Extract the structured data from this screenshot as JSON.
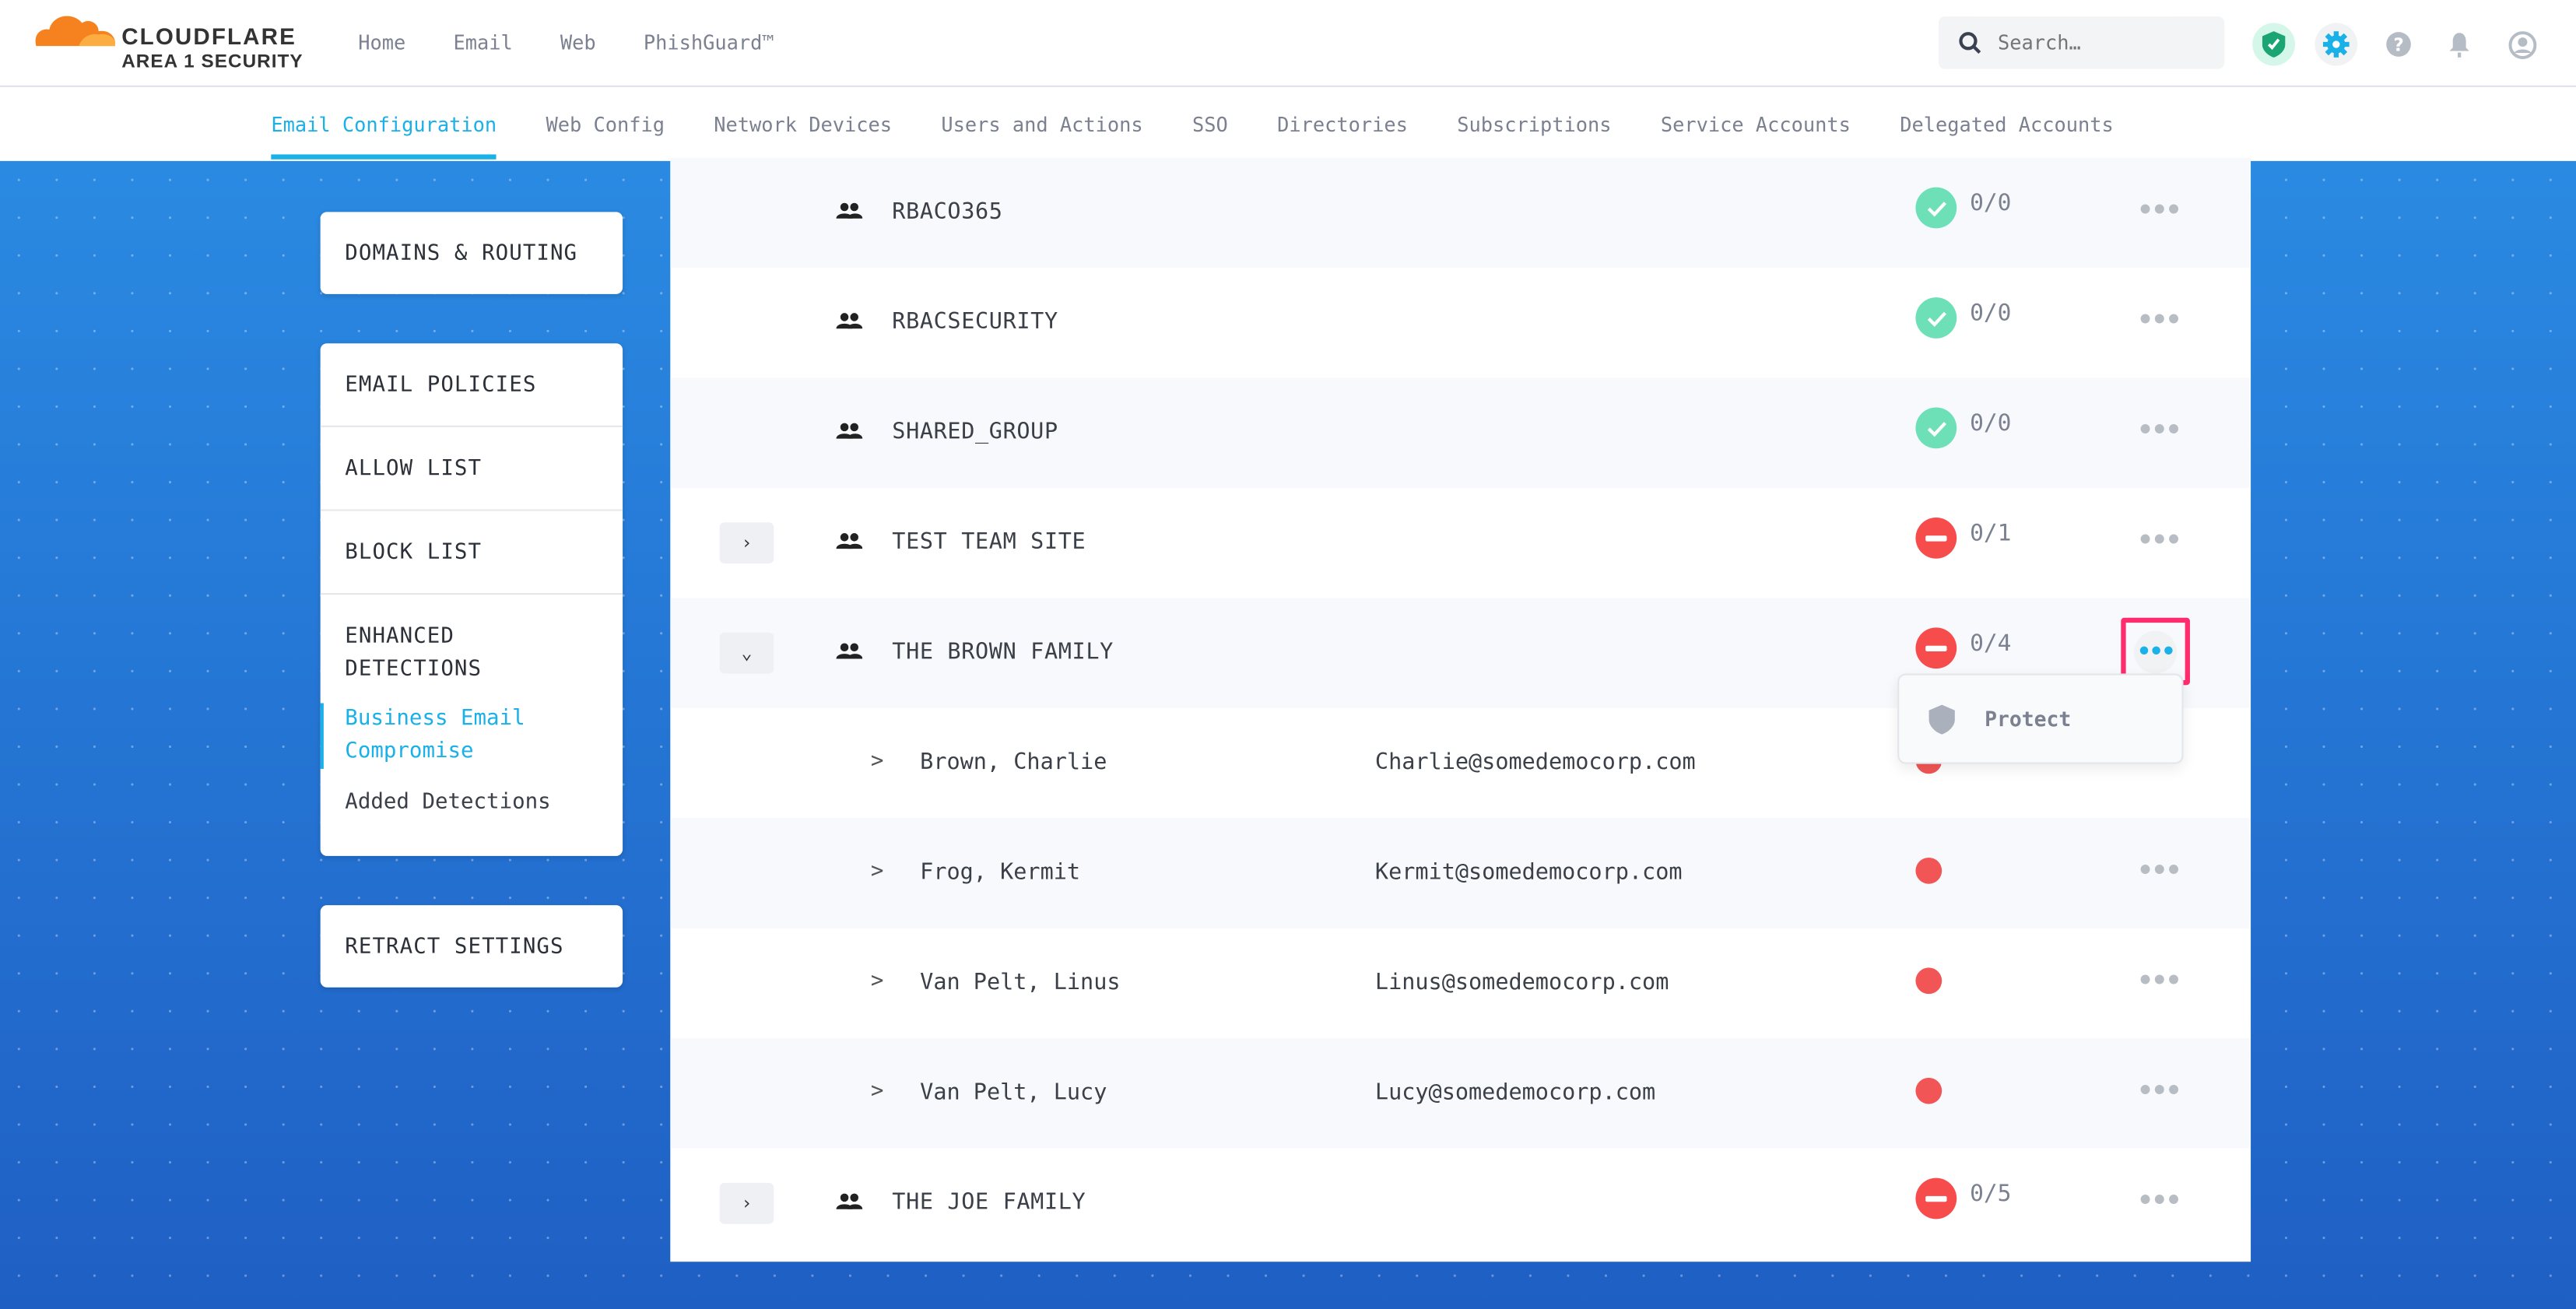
{
  "header": {
    "brand": "CLOUDFLARE",
    "brand_sub": "AREA 1 SECURITY",
    "nav": [
      "Home",
      "Email",
      "Web",
      "PhishGuard™"
    ],
    "search_placeholder": "Search…"
  },
  "subnav": {
    "tabs": [
      "Email Configuration",
      "Web Config",
      "Network Devices",
      "Users and Actions",
      "SSO",
      "Directories",
      "Subscriptions",
      "Service Accounts",
      "Delegated Accounts"
    ],
    "active": 0
  },
  "sidebar": {
    "domains": "DOMAINS & ROUTING",
    "email_policies": "EMAIL POLICIES",
    "allow_list": "ALLOW LIST",
    "block_list": "BLOCK LIST",
    "enhanced": "ENHANCED DETECTIONS",
    "bec": "Business Email Compromise",
    "added": "Added Detections",
    "retract": "RETRACT SETTINGS"
  },
  "rows": [
    {
      "type": "group",
      "name": "RBACO365",
      "status": "ok",
      "count": "0/0",
      "expand": null
    },
    {
      "type": "group",
      "name": "RBACSECURITY",
      "status": "ok",
      "count": "0/0",
      "expand": null
    },
    {
      "type": "group",
      "name": "SHARED_GROUP",
      "status": "ok",
      "count": "0/0",
      "expand": null
    },
    {
      "type": "group",
      "name": "TEST TEAM SITE",
      "status": "bad",
      "count": "0/1",
      "expand": "collapsed"
    },
    {
      "type": "group",
      "name": "THE BROWN FAMILY",
      "status": "bad",
      "count": "0/4",
      "expand": "expanded"
    },
    {
      "type": "member",
      "name": "Brown, Charlie",
      "email": "Charlie@somedemocorp.com"
    },
    {
      "type": "member",
      "name": "Frog, Kermit",
      "email": "Kermit@somedemocorp.com"
    },
    {
      "type": "member",
      "name": "Van Pelt, Linus",
      "email": "Linus@somedemocorp.com"
    },
    {
      "type": "member",
      "name": "Van Pelt, Lucy",
      "email": "Lucy@somedemocorp.com"
    },
    {
      "type": "group",
      "name": "THE JOE FAMILY",
      "status": "bad",
      "count": "0/5",
      "expand": "collapsed"
    }
  ],
  "member_chevron": ">",
  "row_menu": {
    "items": [
      "Protect"
    ]
  },
  "colors": {
    "accent": "#1ab0e8",
    "ok": "#6ee0b8",
    "bad": "#f74c4c",
    "highlight": "#ff2d6e"
  }
}
